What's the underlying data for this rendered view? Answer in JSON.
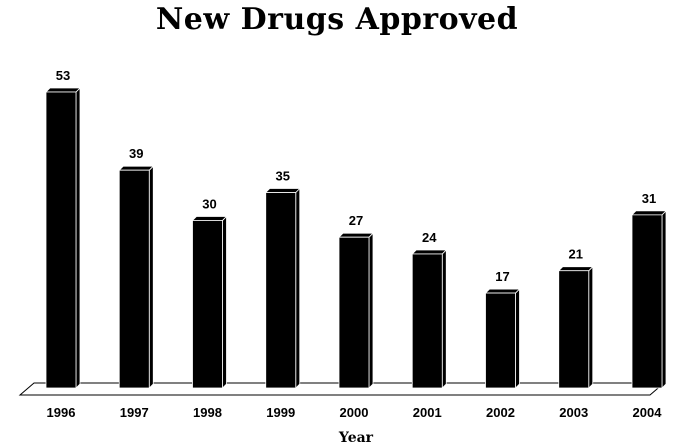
{
  "chart_data": {
    "type": "bar",
    "title": "New Drugs Approved",
    "xlabel": "Year",
    "ylabel": "",
    "categories": [
      "1996",
      "1997",
      "1998",
      "1999",
      "2000",
      "2001",
      "2002",
      "2003",
      "2004"
    ],
    "values": [
      53,
      39,
      30,
      35,
      27,
      24,
      17,
      21,
      31
    ],
    "ylim": [
      0,
      53
    ],
    "grid": false,
    "data_labels": true,
    "colors": {
      "bar": "#000000",
      "bar_edge": "#ffffff",
      "floor": "#ffffff",
      "floor_edge": "#000000"
    }
  }
}
